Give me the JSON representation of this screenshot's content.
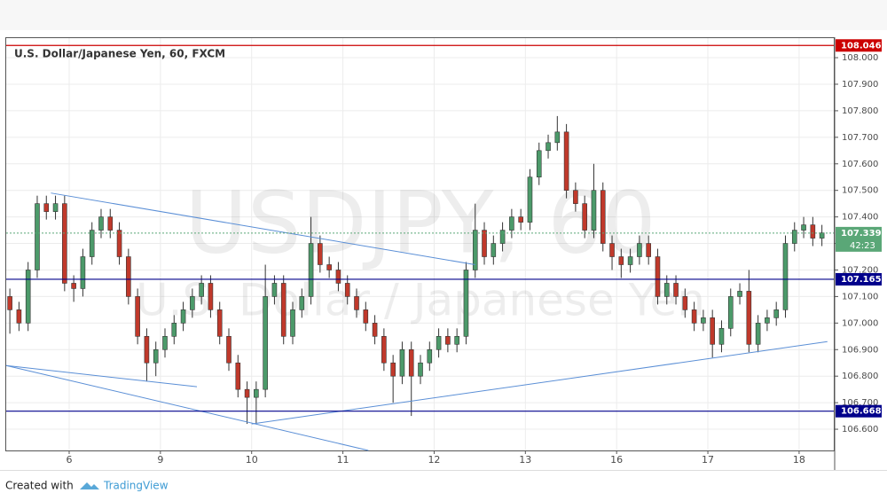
{
  "chart_data": {
    "type": "candlestick",
    "title": "U.S. Dollar/Japanese Yen, 60, FXCM",
    "watermark": "USDJPY, 60",
    "watermark_subtitle": "U.S. Dollar / Japanese Yen",
    "up_color": "#4c9a6a",
    "down_color": "#c0392b",
    "grid": true,
    "xlim": [
      -0.69,
      8.38
    ],
    "ylim": [
      106.52,
      108.077
    ],
    "xticks": [
      {
        "value": 0,
        "label": "6"
      },
      {
        "value": 1,
        "label": "9"
      },
      {
        "value": 2,
        "label": "10"
      },
      {
        "value": 3,
        "label": "11"
      },
      {
        "value": 4,
        "label": "12"
      },
      {
        "value": 5,
        "label": "13"
      },
      {
        "value": 6,
        "label": "16"
      },
      {
        "value": 7,
        "label": "17"
      },
      {
        "value": 8,
        "label": "18"
      }
    ],
    "yticks": [
      {
        "value": 106.6,
        "label": "106.600"
      },
      {
        "value": 106.7,
        "label": "106.700"
      },
      {
        "value": 106.8,
        "label": "106.800"
      },
      {
        "value": 106.9,
        "label": "106.900"
      },
      {
        "value": 107.0,
        "label": "107.000"
      },
      {
        "value": 107.1,
        "label": "107.100"
      },
      {
        "value": 107.2,
        "label": "107.200"
      },
      {
        "value": 107.3,
        "label": "107.300"
      },
      {
        "value": 107.4,
        "label": "107.400"
      },
      {
        "value": 107.5,
        "label": "107.500"
      },
      {
        "value": 107.6,
        "label": "107.600"
      },
      {
        "value": 107.7,
        "label": "107.700"
      },
      {
        "value": 107.8,
        "label": "107.800"
      },
      {
        "value": 107.9,
        "label": "107.900"
      },
      {
        "value": 108.0,
        "label": "108.000"
      }
    ],
    "x": [
      -0.65,
      -0.55,
      -0.45,
      -0.35,
      -0.25,
      -0.15,
      -0.05,
      0.05,
      0.15,
      0.25,
      0.35,
      0.45,
      0.55,
      0.65,
      0.75,
      0.85,
      0.95,
      1.05,
      1.15,
      1.25,
      1.35,
      1.45,
      1.55,
      1.65,
      1.75,
      1.85,
      1.95,
      2.05,
      2.15,
      2.25,
      2.35,
      2.45,
      2.55,
      2.65,
      2.75,
      2.85,
      2.95,
      3.05,
      3.15,
      3.25,
      3.35,
      3.45,
      3.55,
      3.65,
      3.75,
      3.85,
      3.95,
      4.05,
      4.15,
      4.25,
      4.35,
      4.45,
      4.55,
      4.65,
      4.75,
      4.85,
      4.95,
      5.05,
      5.15,
      5.25,
      5.35,
      5.45,
      5.55,
      5.65,
      5.75,
      5.85,
      5.95,
      6.05,
      6.15,
      6.25,
      6.35,
      6.45,
      6.55,
      6.65,
      6.75,
      6.85,
      6.95,
      7.05,
      7.15,
      7.25,
      7.35,
      7.45,
      7.55,
      7.65,
      7.75,
      7.85,
      7.95,
      8.05,
      8.15,
      8.25
    ],
    "open": [
      107.1,
      107.05,
      107.0,
      107.2,
      107.45,
      107.42,
      107.45,
      107.15,
      107.13,
      107.25,
      107.35,
      107.4,
      107.35,
      107.25,
      107.1,
      106.95,
      106.85,
      106.9,
      106.95,
      107.0,
      107.05,
      107.1,
      107.15,
      107.05,
      106.95,
      106.85,
      106.75,
      106.72,
      106.75,
      107.1,
      107.15,
      106.95,
      107.05,
      107.1,
      107.3,
      107.22,
      107.2,
      107.15,
      107.1,
      107.05,
      107.0,
      106.95,
      106.85,
      106.8,
      106.9,
      106.8,
      106.85,
      106.9,
      106.95,
      106.92,
      106.95,
      107.2,
      107.35,
      107.25,
      107.3,
      107.35,
      107.4,
      107.38,
      107.55,
      107.65,
      107.68,
      107.72,
      107.5,
      107.45,
      107.35,
      107.5,
      107.3,
      107.25,
      107.22,
      107.25,
      107.3,
      107.25,
      107.1,
      107.15,
      107.1,
      107.05,
      107.0,
      107.02,
      106.92,
      106.98,
      107.1,
      107.12,
      106.92,
      107.0,
      107.02,
      107.05,
      107.3,
      107.35,
      107.37,
      107.32
    ],
    "high": [
      107.13,
      107.08,
      107.23,
      107.48,
      107.48,
      107.48,
      107.48,
      107.18,
      107.28,
      107.38,
      107.43,
      107.43,
      107.38,
      107.28,
      107.13,
      106.98,
      106.93,
      106.98,
      107.03,
      107.08,
      107.13,
      107.18,
      107.18,
      107.08,
      106.98,
      106.88,
      106.78,
      106.78,
      107.22,
      107.18,
      107.18,
      107.08,
      107.13,
      107.4,
      107.33,
      107.25,
      107.23,
      107.18,
      107.13,
      107.08,
      107.03,
      106.98,
      106.88,
      106.93,
      106.93,
      106.88,
      106.93,
      106.98,
      106.98,
      106.98,
      107.23,
      107.45,
      107.38,
      107.33,
      107.38,
      107.43,
      107.43,
      107.58,
      107.68,
      107.71,
      107.78,
      107.75,
      107.53,
      107.48,
      107.6,
      107.53,
      107.33,
      107.28,
      107.28,
      107.33,
      107.33,
      107.28,
      107.18,
      107.18,
      107.13,
      107.08,
      107.05,
      107.05,
      107.01,
      107.13,
      107.15,
      107.2,
      107.03,
      107.05,
      107.08,
      107.33,
      107.38,
      107.4,
      107.4,
      107.37
    ],
    "low": [
      106.96,
      106.97,
      106.97,
      107.17,
      107.39,
      107.39,
      107.12,
      107.08,
      107.1,
      107.22,
      107.32,
      107.32,
      107.22,
      107.07,
      106.92,
      106.78,
      106.8,
      106.87,
      106.92,
      106.97,
      107.02,
      107.07,
      107.02,
      106.92,
      106.82,
      106.72,
      106.62,
      106.62,
      106.72,
      107.07,
      106.92,
      106.92,
      107.02,
      107.07,
      107.19,
      107.17,
      107.12,
      107.07,
      107.02,
      106.97,
      106.92,
      106.82,
      106.7,
      106.77,
      106.65,
      106.77,
      106.82,
      106.87,
      106.89,
      106.89,
      106.92,
      107.17,
      107.22,
      107.22,
      107.27,
      107.32,
      107.35,
      107.35,
      107.52,
      107.62,
      107.65,
      107.47,
      107.42,
      107.32,
      107.32,
      107.27,
      107.2,
      107.17,
      107.19,
      107.22,
      107.22,
      107.07,
      107.07,
      107.07,
      107.02,
      106.97,
      106.97,
      106.87,
      106.89,
      106.95,
      107.07,
      106.89,
      106.89,
      106.97,
      106.99,
      107.02,
      107.27,
      107.32,
      107.29,
      107.29
    ],
    "close": [
      107.05,
      107.0,
      107.2,
      107.45,
      107.42,
      107.45,
      107.15,
      107.13,
      107.25,
      107.35,
      107.4,
      107.35,
      107.25,
      107.1,
      106.95,
      106.85,
      106.9,
      106.95,
      107.0,
      107.05,
      107.1,
      107.15,
      107.05,
      106.95,
      106.85,
      106.75,
      106.72,
      106.75,
      107.1,
      107.15,
      106.95,
      107.05,
      107.1,
      107.3,
      107.22,
      107.2,
      107.15,
      107.1,
      107.05,
      107.0,
      106.95,
      106.85,
      106.8,
      106.9,
      106.8,
      106.85,
      106.9,
      106.95,
      106.92,
      106.95,
      107.2,
      107.35,
      107.25,
      107.3,
      107.35,
      107.4,
      107.38,
      107.55,
      107.65,
      107.68,
      107.72,
      107.5,
      107.45,
      107.35,
      107.5,
      107.3,
      107.25,
      107.22,
      107.25,
      107.3,
      107.25,
      107.1,
      107.15,
      107.1,
      107.05,
      107.0,
      107.02,
      106.92,
      106.98,
      107.1,
      107.12,
      106.92,
      107.0,
      107.02,
      107.05,
      107.3,
      107.35,
      107.37,
      107.32,
      107.34
    ],
    "levels": [
      {
        "value": 108.046,
        "color": "#cc0000"
      },
      {
        "value": 107.165,
        "color": "#00008b"
      },
      {
        "value": 106.668,
        "color": "#00008b"
      }
    ],
    "last_price": 107.339,
    "last_price_color": "#5aa777",
    "countdown": "42:23",
    "trendline_color": "#5b8fd6",
    "trendlines": [
      {
        "x": [
          -0.2,
          4.45
        ],
        "y": [
          107.49,
          107.22
        ]
      },
      {
        "x": [
          -0.69,
          3.28
        ],
        "y": [
          106.84,
          106.52
        ]
      },
      {
        "x": [
          -0.69,
          1.4
        ],
        "y": [
          106.84,
          106.76
        ]
      },
      {
        "x": [
          2.0,
          8.31
        ],
        "y": [
          106.62,
          106.93
        ]
      }
    ]
  },
  "footer": {
    "created_with": "Created with",
    "brand": "TradingView"
  }
}
